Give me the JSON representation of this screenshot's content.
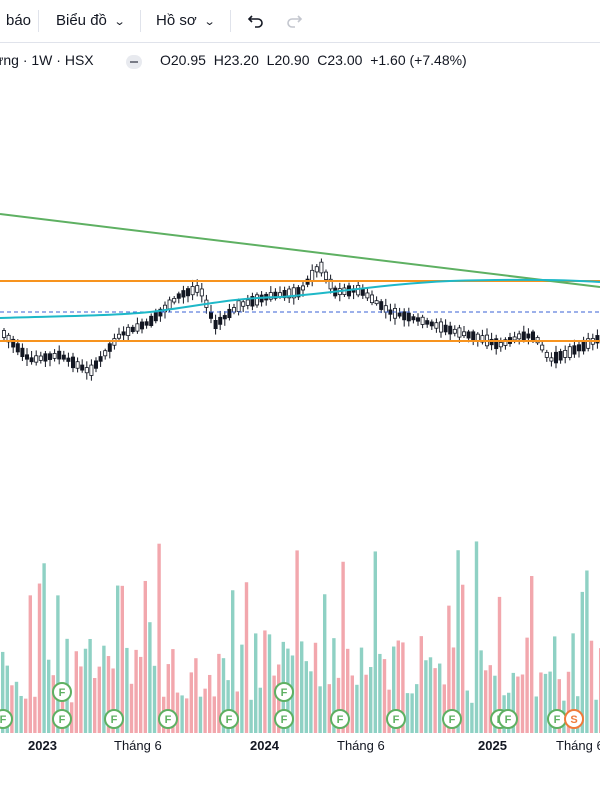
{
  "toolbar": {
    "alerts_label": "báo",
    "chart_menu_label": "Biểu đồ",
    "profile_menu_label": "Hồ sơ",
    "undo_icon": "undo-icon",
    "redo_icon": "redo-icon"
  },
  "legend": {
    "symbol": "ưng · 1W · HSX",
    "open": "O20.95",
    "high": "H23.20",
    "low": "L20.90",
    "close": "C23.00",
    "change": "+1.60 (+7.48%)"
  },
  "colors": {
    "up": "#131722",
    "down": "#131722",
    "volume_up": "#8fd1c4",
    "volume_down": "#f2a7ad",
    "trendline": "#5eb062",
    "support_resistance": "#f7931e",
    "moving_average": "#1eb8c8",
    "price_dash": "#3962d4",
    "event_badge": "#5eb062",
    "split_badge": "#f07a3a"
  },
  "time_axis": [
    {
      "label": "2023",
      "bold": true
    },
    {
      "label": "Tháng 6",
      "bold": false
    },
    {
      "label": "2024",
      "bold": true
    },
    {
      "label": "Tháng 6",
      "bold": false
    },
    {
      "label": "2025",
      "bold": true
    },
    {
      "label": "Tháng 6",
      "bold": false
    }
  ],
  "event_badges": {
    "financial": "F",
    "split": "S"
  }
}
